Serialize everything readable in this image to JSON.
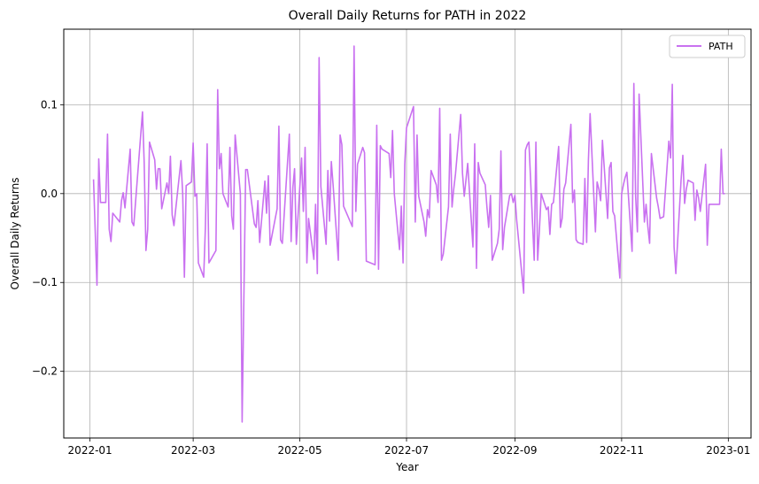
{
  "chart_data": {
    "type": "line",
    "title": "Overall Daily Returns for PATH in 2022",
    "xlabel": "Year",
    "ylabel": "Overall Daily Returns",
    "x_is_date": true,
    "xlim": [
      "2021-12-17",
      "2023-01-14"
    ],
    "ylim": [
      -0.275,
      0.185
    ],
    "grid": true,
    "legend_position": "top-right",
    "x_ticks": [
      "2022-01",
      "2022-03",
      "2022-05",
      "2022-07",
      "2022-09",
      "2022-11",
      "2023-01"
    ],
    "y_ticks": [
      {
        "value": 0.1,
        "label": "0.1"
      },
      {
        "value": 0.0,
        "label": "0.0"
      },
      {
        "value": -0.1,
        "label": "−0.1"
      },
      {
        "value": -0.2,
        "label": "−0.2"
      }
    ],
    "series": [
      {
        "name": "PATH",
        "color": "#c971f0",
        "x": [
          "2022-01-03",
          "2022-01-05",
          "2022-01-06",
          "2022-01-07",
          "2022-01-10",
          "2022-01-11",
          "2022-01-12",
          "2022-01-13",
          "2022-01-14",
          "2022-01-18",
          "2022-01-19",
          "2022-01-20",
          "2022-01-21",
          "2022-01-24",
          "2022-01-25",
          "2022-01-26",
          "2022-01-31",
          "2022-02-01",
          "2022-02-02",
          "2022-02-03",
          "2022-02-04",
          "2022-02-07",
          "2022-02-08",
          "2022-02-09",
          "2022-02-10",
          "2022-02-11",
          "2022-02-14",
          "2022-02-15",
          "2022-02-16",
          "2022-02-17",
          "2022-02-18",
          "2022-02-22",
          "2022-02-23",
          "2022-02-24",
          "2022-02-25",
          "2022-02-28",
          "2022-03-01",
          "2022-03-02",
          "2022-03-03",
          "2022-03-04",
          "2022-03-07",
          "2022-03-08",
          "2022-03-09",
          "2022-03-10",
          "2022-03-14",
          "2022-03-15",
          "2022-03-16",
          "2022-03-17",
          "2022-03-18",
          "2022-03-21",
          "2022-03-22",
          "2022-03-23",
          "2022-03-24",
          "2022-03-25",
          "2022-03-28",
          "2022-03-29",
          "2022-03-31",
          "2022-04-01",
          "2022-04-05",
          "2022-04-06",
          "2022-04-07",
          "2022-04-08",
          "2022-04-11",
          "2022-04-12",
          "2022-04-13",
          "2022-04-14",
          "2022-04-18",
          "2022-04-19",
          "2022-04-20",
          "2022-04-21",
          "2022-04-25",
          "2022-04-26",
          "2022-04-27",
          "2022-04-28",
          "2022-04-29",
          "2022-05-02",
          "2022-05-03",
          "2022-05-04",
          "2022-05-05",
          "2022-05-06",
          "2022-05-09",
          "2022-05-10",
          "2022-05-11",
          "2022-05-12",
          "2022-05-13",
          "2022-05-16",
          "2022-05-17",
          "2022-05-18",
          "2022-05-19",
          "2022-05-20",
          "2022-05-23",
          "2022-05-24",
          "2022-05-25",
          "2022-05-26",
          "2022-05-31",
          "2022-06-01",
          "2022-06-02",
          "2022-06-03",
          "2022-06-06",
          "2022-06-07",
          "2022-06-08",
          "2022-06-13",
          "2022-06-14",
          "2022-06-15",
          "2022-06-16",
          "2022-06-17",
          "2022-06-21",
          "2022-06-22",
          "2022-06-23",
          "2022-06-24",
          "2022-06-27",
          "2022-06-28",
          "2022-06-29",
          "2022-06-30",
          "2022-07-01",
          "2022-07-05",
          "2022-07-06",
          "2022-07-07",
          "2022-07-08",
          "2022-07-11",
          "2022-07-12",
          "2022-07-13",
          "2022-07-14",
          "2022-07-15",
          "2022-07-18",
          "2022-07-19",
          "2022-07-20",
          "2022-07-21",
          "2022-07-22",
          "2022-07-25",
          "2022-07-26",
          "2022-07-27",
          "2022-07-28",
          "2022-07-29",
          "2022-08-01",
          "2022-08-02",
          "2022-08-03",
          "2022-08-04",
          "2022-08-05",
          "2022-08-08",
          "2022-08-09",
          "2022-08-10",
          "2022-08-11",
          "2022-08-12",
          "2022-08-15",
          "2022-08-16",
          "2022-08-17",
          "2022-08-18",
          "2022-08-19",
          "2022-08-22",
          "2022-08-23",
          "2022-08-24",
          "2022-08-25",
          "2022-08-26",
          "2022-08-29",
          "2022-08-30",
          "2022-08-31",
          "2022-09-01",
          "2022-09-02",
          "2022-09-06",
          "2022-09-07",
          "2022-09-08",
          "2022-09-09",
          "2022-09-12",
          "2022-09-13",
          "2022-09-14",
          "2022-09-15",
          "2022-09-16",
          "2022-09-19",
          "2022-09-20",
          "2022-09-21",
          "2022-09-22",
          "2022-09-23",
          "2022-09-26",
          "2022-09-27",
          "2022-09-28",
          "2022-09-29",
          "2022-09-30",
          "2022-10-03",
          "2022-10-04",
          "2022-10-05",
          "2022-10-06",
          "2022-10-07",
          "2022-10-10",
          "2022-10-11",
          "2022-10-12",
          "2022-10-13",
          "2022-10-14",
          "2022-10-17",
          "2022-10-18",
          "2022-10-19",
          "2022-10-20",
          "2022-10-21",
          "2022-10-24",
          "2022-10-25",
          "2022-10-26",
          "2022-10-27",
          "2022-10-28",
          "2022-10-31",
          "2022-11-01",
          "2022-11-02",
          "2022-11-03",
          "2022-11-04",
          "2022-11-07",
          "2022-11-08",
          "2022-11-09",
          "2022-11-10",
          "2022-11-11",
          "2022-11-14",
          "2022-11-15",
          "2022-11-16",
          "2022-11-17",
          "2022-11-18",
          "2022-11-21",
          "2022-11-22",
          "2022-11-23",
          "2022-11-25",
          "2022-11-28",
          "2022-11-29",
          "2022-11-30",
          "2022-12-01",
          "2022-12-02",
          "2022-12-05",
          "2022-12-06",
          "2022-12-07",
          "2022-12-08",
          "2022-12-09",
          "2022-12-12",
          "2022-12-13",
          "2022-12-14",
          "2022-12-15",
          "2022-12-16",
          "2022-12-19",
          "2022-12-20",
          "2022-12-21",
          "2022-12-22",
          "2022-12-23",
          "2022-12-27",
          "2022-12-28",
          "2022-12-29",
          "2022-12-30"
        ],
        "y": [
          0.016,
          -0.103,
          0.039,
          -0.01,
          -0.01,
          0.067,
          -0.04,
          -0.054,
          -0.022,
          -0.032,
          -0.008,
          0.001,
          -0.016,
          0.05,
          -0.032,
          -0.036,
          0.092,
          0.035,
          -0.064,
          -0.04,
          0.058,
          0.038,
          0.005,
          0.028,
          0.028,
          -0.017,
          0.012,
          0.0,
          0.042,
          -0.024,
          -0.036,
          0.037,
          0.0,
          -0.094,
          0.009,
          0.013,
          0.057,
          -0.003,
          0.0,
          -0.078,
          -0.094,
          -0.038,
          0.056,
          -0.078,
          -0.064,
          0.117,
          0.028,
          0.045,
          0.0,
          -0.015,
          0.052,
          -0.025,
          -0.04,
          0.066,
          0.0,
          -0.257,
          0.027,
          0.027,
          -0.034,
          -0.038,
          -0.008,
          -0.055,
          0.014,
          -0.022,
          0.02,
          -0.058,
          -0.017,
          0.076,
          -0.052,
          -0.056,
          0.067,
          -0.054,
          0.007,
          0.028,
          -0.057,
          0.04,
          -0.02,
          0.052,
          -0.078,
          -0.028,
          -0.074,
          -0.012,
          -0.09,
          0.153,
          0.008,
          -0.057,
          0.026,
          -0.031,
          0.036,
          0.01,
          -0.075,
          0.066,
          0.055,
          -0.014,
          -0.037,
          0.166,
          -0.02,
          0.033,
          0.052,
          0.046,
          -0.076,
          -0.08,
          0.077,
          -0.085,
          0.054,
          0.05,
          0.045,
          0.018,
          0.071,
          0.0,
          -0.063,
          -0.014,
          -0.078,
          0.033,
          0.074,
          0.098,
          -0.032,
          0.066,
          -0.003,
          -0.032,
          -0.048,
          -0.018,
          -0.027,
          0.026,
          0.01,
          -0.01,
          0.096,
          -0.075,
          -0.068,
          -0.015,
          0.067,
          -0.015,
          0.005,
          0.022,
          0.089,
          0.023,
          -0.003,
          0.015,
          0.034,
          -0.06,
          0.056,
          -0.084,
          0.035,
          0.023,
          0.01,
          -0.015,
          -0.038,
          -0.002,
          -0.075,
          -0.056,
          -0.04,
          0.048,
          -0.063,
          -0.038,
          -0.002,
          0.0,
          -0.01,
          -0.002,
          -0.03,
          -0.112,
          0.049,
          0.055,
          0.058,
          -0.075,
          0.058,
          -0.075,
          -0.04,
          0.0,
          -0.018,
          -0.015,
          -0.046,
          -0.012,
          -0.01,
          0.053,
          -0.038,
          -0.028,
          0.005,
          0.012,
          0.078,
          -0.01,
          0.004,
          -0.052,
          -0.055,
          -0.057,
          0.017,
          -0.055,
          0.038,
          0.09,
          -0.043,
          0.013,
          0.005,
          -0.008,
          0.06,
          -0.028,
          0.029,
          0.035,
          -0.02,
          -0.025,
          -0.095,
          0.0,
          0.01,
          0.018,
          0.024,
          -0.065,
          0.124,
          -0.003,
          -0.043,
          0.112,
          -0.032,
          -0.012,
          -0.037,
          -0.056,
          0.045,
          -0.005,
          -0.015,
          -0.028,
          -0.026,
          0.059,
          0.04,
          0.123,
          -0.06,
          -0.09,
          0.015,
          0.043,
          -0.011,
          0.005,
          0.015,
          0.012,
          -0.03,
          0.004,
          -0.005,
          -0.02,
          0.033,
          -0.058,
          -0.012,
          -0.012,
          -0.012,
          -0.012,
          0.05,
          0.0,
          0.0
        ]
      }
    ]
  }
}
